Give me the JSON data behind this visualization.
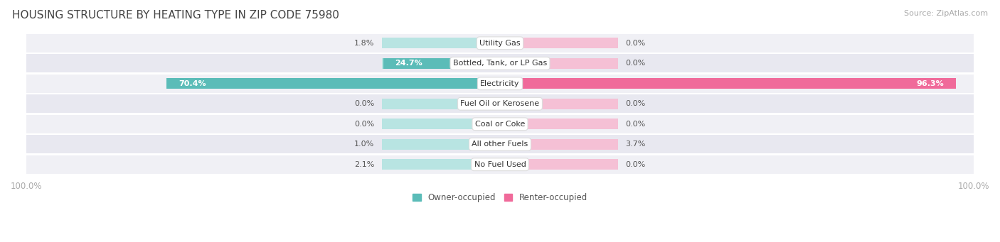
{
  "title": "HOUSING STRUCTURE BY HEATING TYPE IN ZIP CODE 75980",
  "source_text": "Source: ZipAtlas.com",
  "categories": [
    "Utility Gas",
    "Bottled, Tank, or LP Gas",
    "Electricity",
    "Fuel Oil or Kerosene",
    "Coal or Coke",
    "All other Fuels",
    "No Fuel Used"
  ],
  "owner_values": [
    1.8,
    24.7,
    70.4,
    0.0,
    0.0,
    1.0,
    2.1
  ],
  "renter_values": [
    0.0,
    0.0,
    96.3,
    0.0,
    0.0,
    3.7,
    0.0
  ],
  "owner_color": "#5bbcb8",
  "owner_bg_color": "#b8e4e2",
  "renter_color": "#f06a9a",
  "renter_bg_color": "#f5c0d5",
  "row_bg_odd": "#f0f0f5",
  "row_bg_even": "#e8e8f0",
  "gap_color": "#ffffff",
  "label_dark_color": "#555555",
  "axis_label_color": "#aaaaaa",
  "title_color": "#444444",
  "source_color": "#aaaaaa",
  "max_value": 100.0,
  "bar_height": 0.52,
  "base_bar_width": 25,
  "figsize": [
    14.06,
    3.41
  ],
  "dpi": 100
}
